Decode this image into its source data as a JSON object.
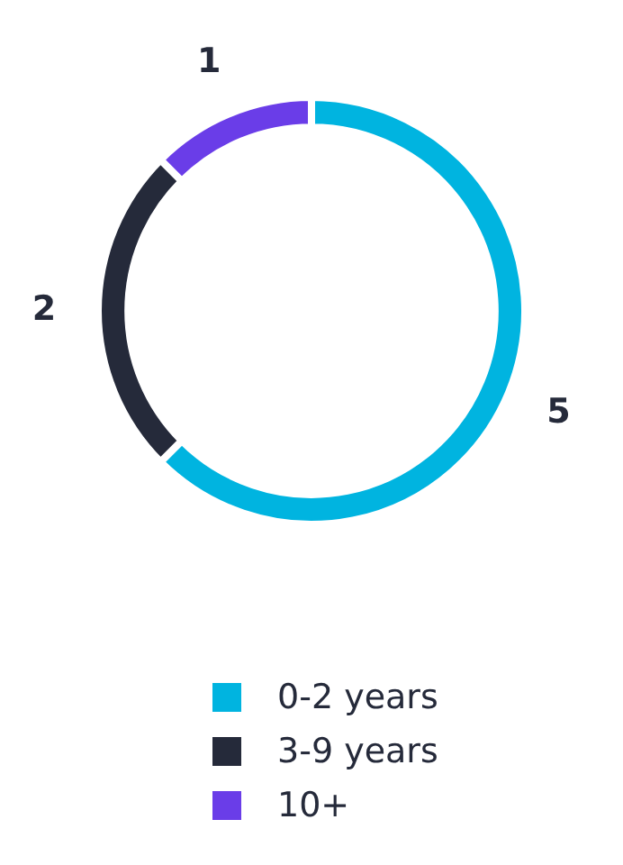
{
  "chart_data": {
    "type": "donut",
    "categories": [
      "0-2 years",
      "3-9 years",
      "10+"
    ],
    "values": [
      5,
      2,
      1
    ],
    "colors": [
      "#00b4e0",
      "#252a3a",
      "#6a3de8"
    ],
    "data_labels": true,
    "legend": "bottom"
  }
}
